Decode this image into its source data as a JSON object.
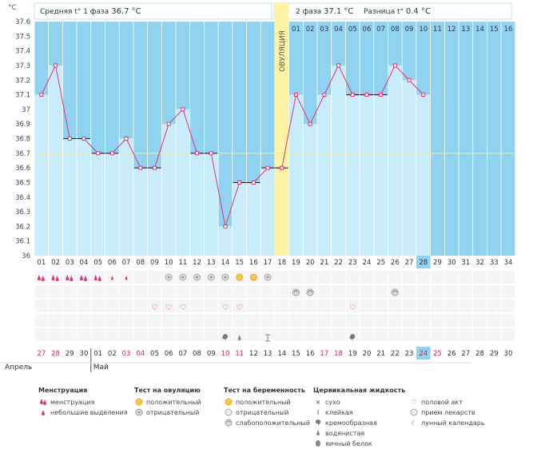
{
  "header": {
    "phase1_label": "Средняя t° 1 фаза",
    "phase1_value": "36.7 °C",
    "phase2_label": "2 фаза",
    "phase2_value": "37.1 °C",
    "diff_label": "Разница t°",
    "diff_value": "0.4 °C"
  },
  "chart_data": {
    "type": "line",
    "ylabel": "°C",
    "ylim": [
      36,
      37.6
    ],
    "yticks": [
      "36",
      "36.1",
      "36.2",
      "36.3",
      "36.4",
      "36.5",
      "36.6",
      "36.7",
      "36.8",
      "36.9",
      "37",
      "37.1",
      "37.2",
      "37.3",
      "37.4",
      "37.5",
      "37.6"
    ],
    "cycle_days": [
      "01",
      "02",
      "03",
      "04",
      "05",
      "06",
      "07",
      "08",
      "09",
      "10",
      "11",
      "12",
      "13",
      "14",
      "15",
      "16",
      "17",
      "18",
      "19",
      "20",
      "21",
      "22",
      "23",
      "24",
      "25",
      "26",
      "27",
      "28",
      "29",
      "30",
      "31",
      "32",
      "33",
      "34"
    ],
    "temperatures": [
      37.1,
      37.3,
      36.8,
      36.8,
      36.7,
      36.7,
      36.8,
      36.6,
      36.6,
      36.9,
      37.0,
      36.7,
      36.7,
      36.2,
      36.5,
      36.5,
      36.6,
      36.6,
      37.1,
      36.9,
      37.1,
      37.3,
      37.1,
      37.1,
      37.1,
      37.3,
      37.2,
      37.1
    ],
    "coverline": 36.7,
    "ovulation_day": 18,
    "ovulation_label": "ОВУЛЯЦИЯ",
    "luteal_day_labels": [
      "01",
      "02",
      "03",
      "04",
      "05",
      "06",
      "07",
      "08",
      "09",
      "10",
      "11",
      "12",
      "13",
      "14",
      "15",
      "16"
    ],
    "current_day": 28,
    "dates": [
      "27",
      "28",
      "29",
      "30",
      "01",
      "02",
      "03",
      "04",
      "05",
      "06",
      "07",
      "08",
      "09",
      "10",
      "11",
      "12",
      "13",
      "14",
      "15",
      "16",
      "17",
      "18",
      "19",
      "20",
      "21",
      "22",
      "23",
      "24",
      "25",
      "26",
      "27",
      "28",
      "29",
      "30"
    ],
    "months": [
      "Апрель",
      "Май"
    ],
    "menstruation_days": [
      1,
      2,
      3,
      4,
      5,
      6,
      7
    ],
    "ovulation_test_days": [
      10,
      11,
      12,
      13,
      14,
      15,
      16,
      17
    ],
    "ovulation_test_positive_days": [
      15,
      16
    ],
    "pregnancy_test_days": [
      19,
      20,
      26
    ],
    "intercourse_days": [
      9,
      10,
      11,
      14,
      15,
      23
    ],
    "cervical_days": [
      {
        "day": 14,
        "kind": "creamy"
      },
      {
        "day": 15,
        "kind": "egg-white"
      },
      {
        "day": 17,
        "kind": "sticky"
      },
      {
        "day": 23,
        "kind": "creamy"
      }
    ]
  },
  "legend": {
    "menstruation": {
      "title": "Менструация",
      "items": [
        "менструация",
        "небольшие выделения"
      ]
    },
    "ovulation_test": {
      "title": "Тест на овуляцию",
      "items": [
        "положительный",
        "отрицательный"
      ]
    },
    "pregnancy_test": {
      "title": "Тест на беременность",
      "items": [
        "положительный",
        "отрицательный",
        "слабоположительный"
      ]
    },
    "cervical": {
      "title": "Цервикальная жидкость",
      "items": [
        "сухо",
        "клейкая",
        "кремообразная",
        "водянистая",
        "яичный белок"
      ]
    },
    "other": {
      "items": [
        "половой акт",
        "прием лекарств",
        "лунный календарь"
      ]
    }
  },
  "colors": {
    "follicular": "#8fd3f0",
    "luteal": "#8fd3f0",
    "fill": "#c9ecfb",
    "line": "#e0337a",
    "ovulation": "#fff3a6",
    "today": "#8fd3f0"
  }
}
